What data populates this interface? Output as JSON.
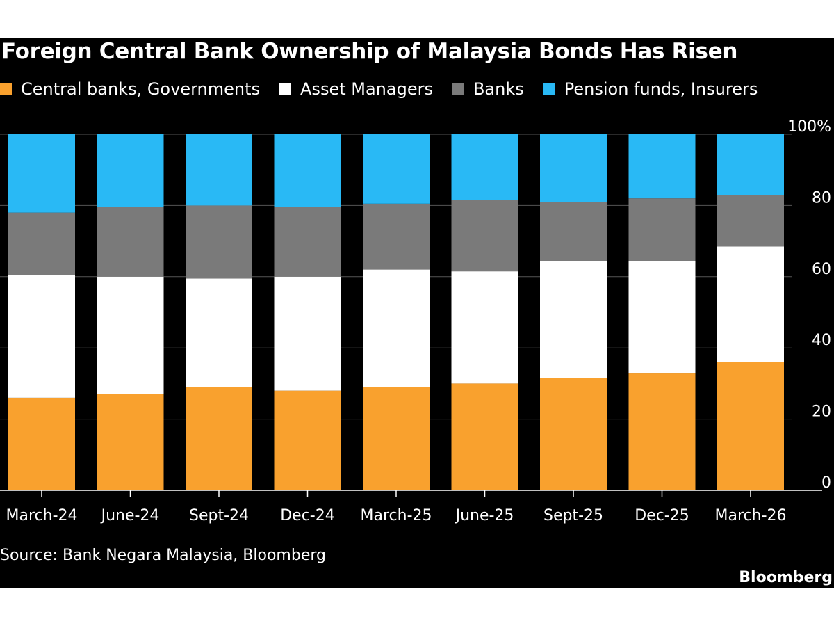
{
  "chart_data": {
    "type": "bar",
    "stacked": true,
    "title": "Foreign Central Bank Ownership of Malaysia Bonds Has Risen",
    "categories": [
      "March-24",
      "June-24",
      "Sept-24",
      "Dec-24",
      "March-25",
      "June-25",
      "Sept-25",
      "Dec-25",
      "March-26"
    ],
    "series": [
      {
        "name": "Central banks, Governments",
        "color": "#f9a12e",
        "values": [
          26,
          27,
          29,
          28,
          29,
          30,
          31.5,
          33,
          36
        ]
      },
      {
        "name": "Asset Managers",
        "color": "#ffffff",
        "values": [
          34.5,
          33,
          30.5,
          32,
          33,
          31.5,
          33,
          31.5,
          32.5
        ]
      },
      {
        "name": "Banks",
        "color": "#7a7a7a",
        "values": [
          17.5,
          19.5,
          20.5,
          19.5,
          18.5,
          20,
          16.5,
          17.5,
          14.5
        ]
      },
      {
        "name": "Pension funds, Insurers",
        "color": "#29b9f5",
        "values": [
          22,
          20.5,
          20,
          20.5,
          19.5,
          18.5,
          19,
          18,
          17
        ]
      }
    ],
    "ylim": [
      0,
      100
    ],
    "yticks": [
      {
        "value": 0,
        "label": "0"
      },
      {
        "value": 20,
        "label": "20"
      },
      {
        "value": 40,
        "label": "40"
      },
      {
        "value": 60,
        "label": "60"
      },
      {
        "value": 80,
        "label": "80"
      },
      {
        "value": 100,
        "label": "100%"
      }
    ],
    "grid": true,
    "legend_position": "top-left",
    "xlabel": "",
    "ylabel": ""
  },
  "source": "Source: Bank Negara Malaysia, Bloomberg",
  "brand": "Bloomberg",
  "colors": {
    "background": "#000000",
    "text": "#ffffff",
    "gridline": "#555555"
  }
}
